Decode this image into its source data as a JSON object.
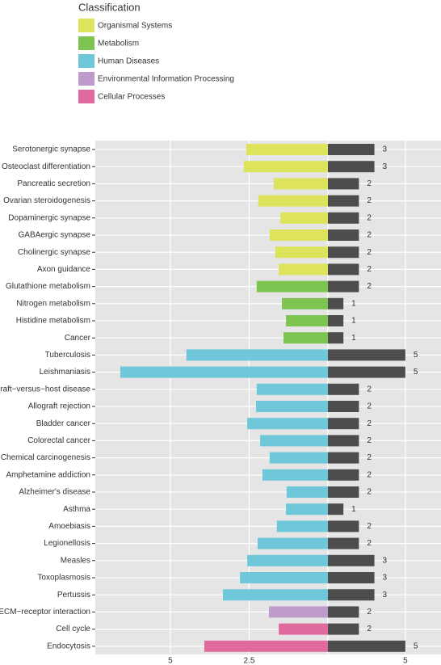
{
  "chart_data": {
    "type": "diverging-bar",
    "legend_title": "Classification",
    "legend": [
      {
        "name": "Organismal Systems",
        "color": "#dde35b"
      },
      {
        "name": "Metabolism",
        "color": "#7dc450"
      },
      {
        "name": "Human Diseases",
        "color": "#6ec8da"
      },
      {
        "name": "Environmental Information Processing",
        "color": "#bf9bcc"
      },
      {
        "name": "Cellular Processes",
        "color": "#e06a9d"
      }
    ],
    "categories": [
      "Serotonergic synapse",
      "Osteoclast differentiation",
      "Pancreatic secretion",
      "Ovarian steroidogenesis",
      "Dopaminergic synapse",
      "GABAergic synapse",
      "Cholinergic synapse",
      "Axon guidance",
      "Glutathione metabolism",
      "Nitrogen metabolism",
      "Histidine metabolism",
      "Cancer",
      "Tuberculosis",
      "Leishmaniasis",
      "Graft−versus−host disease",
      "Allograft rejection",
      "Bladder cancer",
      "Colorectal cancer",
      "Chemical carcinogenesis",
      "Amphetamine addiction",
      "Alzheimer's disease",
      "Asthma",
      "Amoebiasis",
      "Legionellosis",
      "Measles",
      "Toxoplasmosis",
      "Pertussis",
      "ECM−receptor interaction",
      "Cell cycle",
      "Endocytosis"
    ],
    "classification": [
      "Organismal Systems",
      "Organismal Systems",
      "Organismal Systems",
      "Organismal Systems",
      "Organismal Systems",
      "Organismal Systems",
      "Organismal Systems",
      "Organismal Systems",
      "Metabolism",
      "Metabolism",
      "Metabolism",
      "Metabolism",
      "Human Diseases",
      "Human Diseases",
      "Human Diseases",
      "Human Diseases",
      "Human Diseases",
      "Human Diseases",
      "Human Diseases",
      "Human Diseases",
      "Human Diseases",
      "Human Diseases",
      "Human Diseases",
      "Human Diseases",
      "Human Diseases",
      "Human Diseases",
      "Human Diseases",
      "Environmental Information Processing",
      "Cellular Processes",
      "Cellular Processes"
    ],
    "left_values": [
      2.59,
      2.67,
      1.72,
      2.21,
      1.51,
      1.85,
      1.67,
      1.56,
      2.26,
      1.46,
      1.33,
      1.41,
      4.49,
      6.59,
      2.26,
      2.28,
      2.56,
      2.15,
      1.85,
      2.08,
      1.31,
      1.33,
      1.62,
      2.23,
      2.56,
      2.79,
      3.33,
      1.87,
      1.56,
      3.92
    ],
    "right_values": [
      3,
      3,
      2,
      2,
      2,
      2,
      2,
      2,
      2,
      1,
      1,
      1,
      5,
      5,
      2,
      2,
      2,
      2,
      2,
      2,
      2,
      1,
      2,
      2,
      3,
      3,
      3,
      2,
      2,
      5
    ],
    "right_color": "#4d4d4d",
    "left_xlim": [
      0,
      7.38
    ],
    "left_xticks": [
      5,
      2.5
    ],
    "right_xlim": [
      0,
      7.3
    ],
    "right_xticks": [
      5
    ],
    "grid": true
  }
}
